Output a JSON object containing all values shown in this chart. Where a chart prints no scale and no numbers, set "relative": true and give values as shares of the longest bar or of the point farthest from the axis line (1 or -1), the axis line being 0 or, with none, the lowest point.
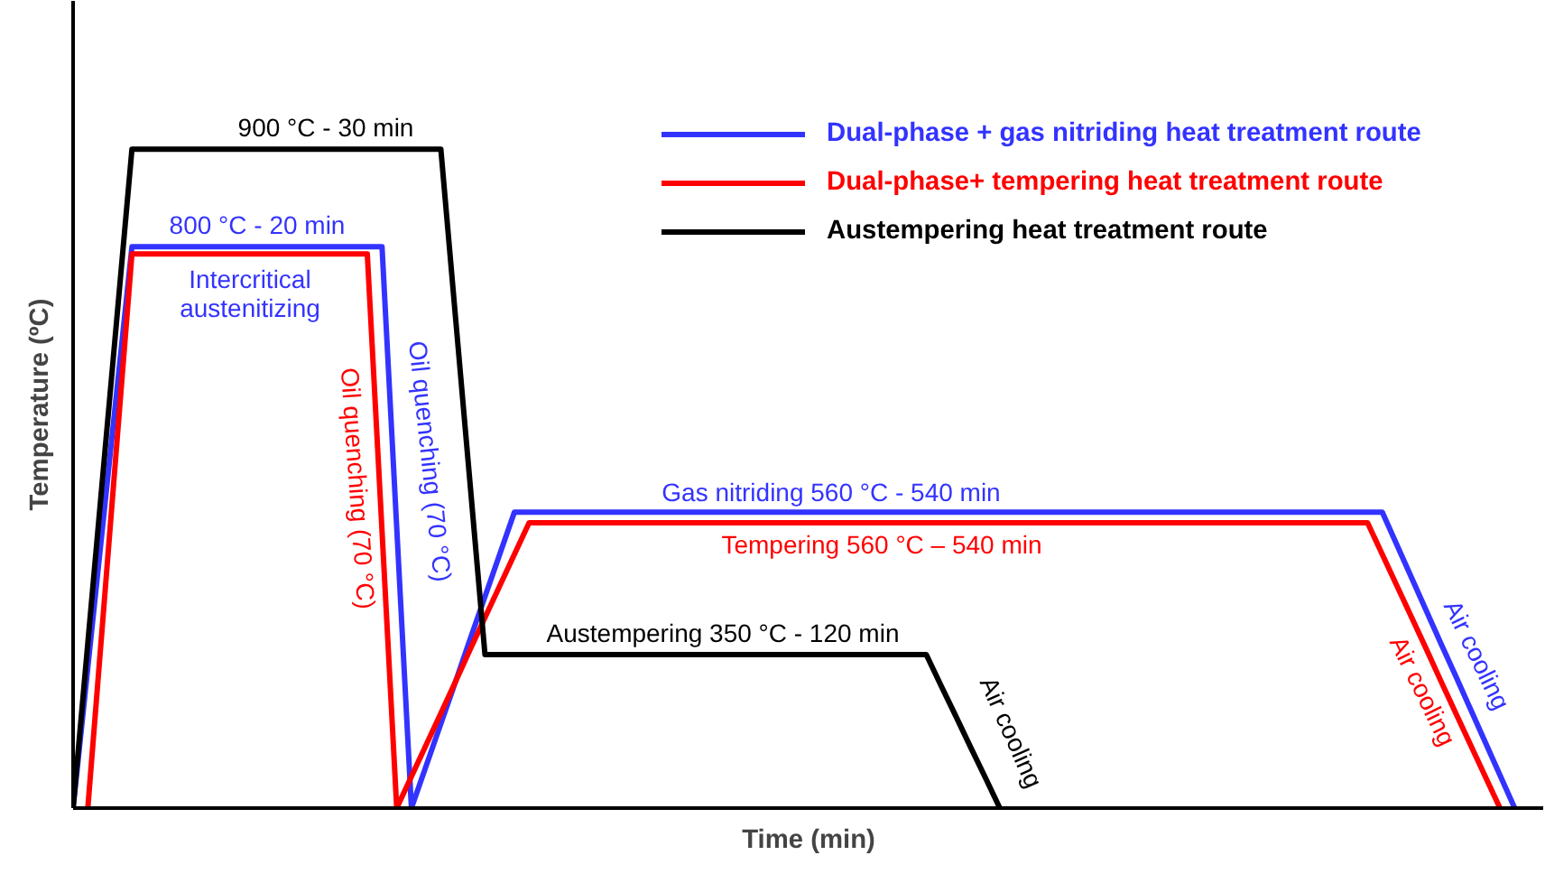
{
  "chart_data": {
    "type": "line",
    "relative": true,
    "xlabel": "Time (min)",
    "ylabel": "Temperature (ºC)",
    "tick_labels": false,
    "grid": false,
    "legend": "top right",
    "marker": "none",
    "line_style": "solid",
    "categories": [
      null,
      null,
      null,
      null,
      null,
      null,
      null,
      null,
      null,
      null,
      null,
      null,
      null,
      null,
      null,
      null,
      null,
      null,
      null,
      null,
      null,
      null,
      null,
      null,
      null,
      null,
      null,
      null,
      null,
      null,
      null,
      null,
      null,
      null,
      null,
      null,
      null,
      null,
      null,
      null,
      null,
      null,
      null,
      null,
      null,
      null,
      null,
      null,
      null,
      null,
      null,
      null,
      null,
      null,
      null,
      null,
      null,
      null,
      null,
      null,
      null,
      null,
      null,
      null,
      null,
      null,
      null,
      null,
      null,
      null,
      null,
      null,
      null,
      null,
      null,
      null,
      null,
      null,
      null,
      null,
      null,
      null,
      null,
      null,
      null,
      null,
      null,
      null,
      null,
      null,
      null,
      null,
      null,
      null,
      null,
      null,
      null,
      null,
      null,
      null
    ],
    "series": [
      {
        "name": "Dual-phase + gas nitriding heat treatment route",
        "color": "#3333ff",
        "values": [
          0,
          0.213,
          0.426,
          0.639,
          0.852,
          0.852,
          0.852,
          0.852,
          0.852,
          0.852,
          0.852,
          0.852,
          0.852,
          0.852,
          0.852,
          0.852,
          0.852,
          0.852,
          0.852,
          0.852,
          0.852,
          0.852,
          0.426,
          0,
          0.064,
          0.128,
          0.192,
          0.257,
          0.321,
          0.385,
          0.449,
          0.449,
          0.449,
          0.449,
          0.449,
          0.449,
          0.449,
          0.449,
          0.449,
          0.449,
          0.449,
          0.449,
          0.449,
          0.449,
          0.449,
          0.449,
          0.449,
          0.449,
          0.449,
          0.449,
          0.449,
          0.449,
          0.449,
          0.449,
          0.449,
          0.449,
          0.449,
          0.449,
          0.449,
          0.449,
          0.449,
          0.449,
          0.449,
          0.449,
          0.449,
          0.449,
          0.449,
          0.449,
          0.449,
          0.449,
          0.449,
          0.449,
          0.449,
          0.449,
          0.449,
          0.449,
          0.449,
          0.449,
          0.449,
          0.449,
          0.449,
          0.449,
          0.449,
          0.449,
          0.449,
          0.449,
          0.449,
          0.449,
          0.449,
          0.449,
          0.399,
          0.349,
          0.299,
          0.249,
          0.2,
          0.15,
          0.1,
          0.05,
          0,
          null
        ]
      },
      {
        "name": "Dual-phase+ tempering heat treatment route",
        "color": "#ff0000",
        "values": [
          null,
          0,
          0.28,
          0.561,
          0.841,
          0.841,
          0.841,
          0.841,
          0.841,
          0.841,
          0.841,
          0.841,
          0.841,
          0.841,
          0.841,
          0.841,
          0.841,
          0.841,
          0.841,
          0.841,
          0.841,
          0.421,
          0,
          0.048,
          0.096,
          0.144,
          0.192,
          0.241,
          0.289,
          0.337,
          0.385,
          0.433,
          0.433,
          0.433,
          0.433,
          0.433,
          0.433,
          0.433,
          0.433,
          0.433,
          0.433,
          0.433,
          0.433,
          0.433,
          0.433,
          0.433,
          0.433,
          0.433,
          0.433,
          0.433,
          0.433,
          0.433,
          0.433,
          0.433,
          0.433,
          0.433,
          0.433,
          0.433,
          0.433,
          0.433,
          0.433,
          0.433,
          0.433,
          0.433,
          0.433,
          0.433,
          0.433,
          0.433,
          0.433,
          0.433,
          0.433,
          0.433,
          0.433,
          0.433,
          0.433,
          0.433,
          0.433,
          0.433,
          0.433,
          0.433,
          0.433,
          0.433,
          0.433,
          0.433,
          0.433,
          0.433,
          0.433,
          0.433,
          0.433,
          0.385,
          0.337,
          0.289,
          0.241,
          0.192,
          0.144,
          0.096,
          0.048,
          0,
          null,
          null
        ]
      },
      {
        "name": "Austempering heat treatment route",
        "color": "#000000",
        "values": [
          0,
          0.25,
          0.5,
          0.75,
          1,
          1,
          1,
          1,
          1,
          1,
          1,
          1,
          1,
          1,
          1,
          1,
          1,
          1,
          1,
          1,
          1,
          1,
          1,
          1,
          1,
          1,
          0.744,
          0.489,
          0.233,
          0.233,
          0.233,
          0.233,
          0.233,
          0.233,
          0.233,
          0.233,
          0.233,
          0.233,
          0.233,
          0.233,
          0.233,
          0.233,
          0.233,
          0.233,
          0.233,
          0.233,
          0.233,
          0.233,
          0.233,
          0.233,
          0.233,
          0.233,
          0.233,
          0.233,
          0.233,
          0.233,
          0.233,
          0.233,
          0.233,
          0.186,
          0.14,
          0.093,
          0.047,
          0,
          null,
          null,
          null,
          null,
          null,
          null,
          null,
          null,
          null,
          null,
          null,
          null,
          null,
          null,
          null,
          null,
          null,
          null,
          null,
          null,
          null,
          null,
          null,
          null,
          null,
          null,
          null,
          null,
          null,
          null,
          null,
          null,
          null,
          null,
          null,
          null
        ]
      }
    ],
    "annotations": [
      "900 °C - 30 min",
      "800 °C - 20 min",
      "Intercritical\naustenitizing",
      "Oil quenching (70 °C)",
      "Oil quenching (70 °C)",
      "Gas nitriding 560 °C - 540 min",
      "Tempering 560 °C – 540 min",
      "Austempering 350 °C - 120 min",
      "Air cooling",
      "Air cooling",
      "Air cooling"
    ]
  }
}
